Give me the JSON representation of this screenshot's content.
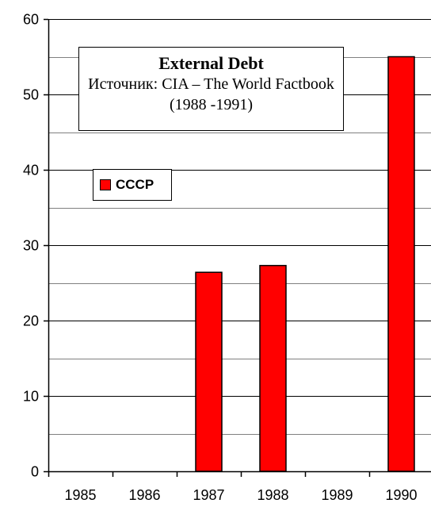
{
  "chart_data": {
    "type": "bar",
    "title": "External Debt",
    "subtitle": "Источник: CIA – The World Factbook (1988 -1991)",
    "categories": [
      "1985",
      "1986",
      "1987",
      "1988",
      "1989",
      "1990"
    ],
    "series": [
      {
        "name": "СССР",
        "values": [
          null,
          null,
          26.4,
          27.3,
          null,
          55.0
        ],
        "color": "#ff0000"
      }
    ],
    "ylim": [
      0,
      60
    ],
    "yticks": [
      0,
      10,
      20,
      30,
      40,
      50,
      60
    ],
    "grid": true,
    "legend_position": "left"
  }
}
